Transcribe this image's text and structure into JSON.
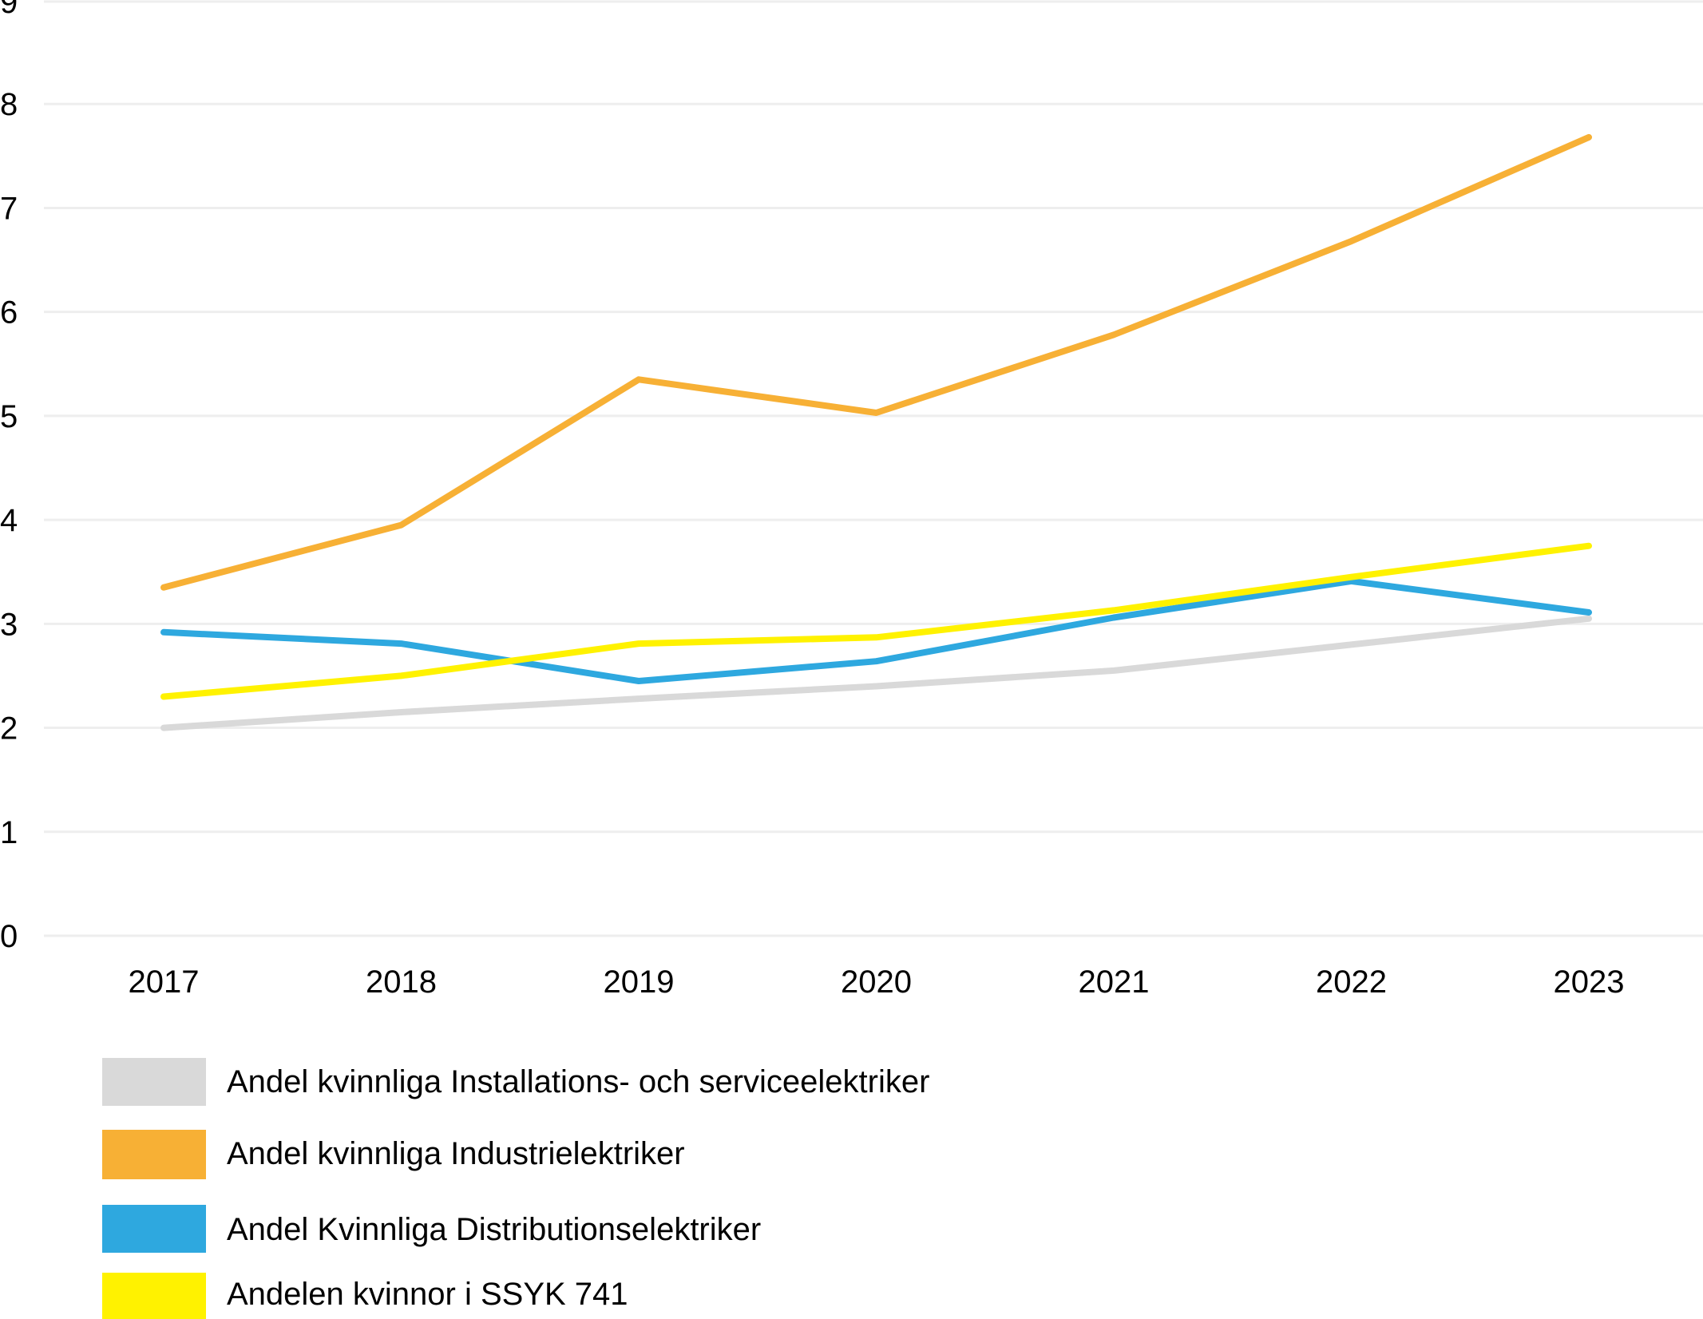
{
  "chart_data": {
    "type": "line",
    "title": "",
    "xlabel": "",
    "ylabel": "",
    "categories": [
      "2017",
      "2018",
      "2019",
      "2020",
      "2021",
      "2022",
      "2023"
    ],
    "y_ticks": [
      "0",
      "1",
      "2",
      "3",
      "4",
      "5",
      "6",
      "7",
      "8",
      "9"
    ],
    "ylim": [
      0,
      9
    ],
    "grid": true,
    "legend_position": "bottom-left",
    "series": [
      {
        "name": "Andel kvinnliga Installations- och serviceelektriker",
        "color": "#d9d9d9",
        "values": [
          2.0,
          2.15,
          2.28,
          2.4,
          2.55,
          2.8,
          3.05
        ]
      },
      {
        "name": "Andel kvinnliga Industrielektriker",
        "color": "#f7b035",
        "values": [
          3.35,
          3.95,
          5.35,
          5.03,
          5.78,
          6.68,
          7.68
        ]
      },
      {
        "name": "Andel Kvinnliga Distributionselektriker",
        "color": "#2ea8df",
        "values": [
          2.92,
          2.81,
          2.45,
          2.64,
          3.06,
          3.41,
          3.11
        ]
      },
      {
        "name": "Andelen kvinnor i SSYK 741",
        "color": "#fff200",
        "values": [
          2.3,
          2.5,
          2.81,
          2.87,
          3.13,
          3.45,
          3.75
        ]
      }
    ]
  }
}
